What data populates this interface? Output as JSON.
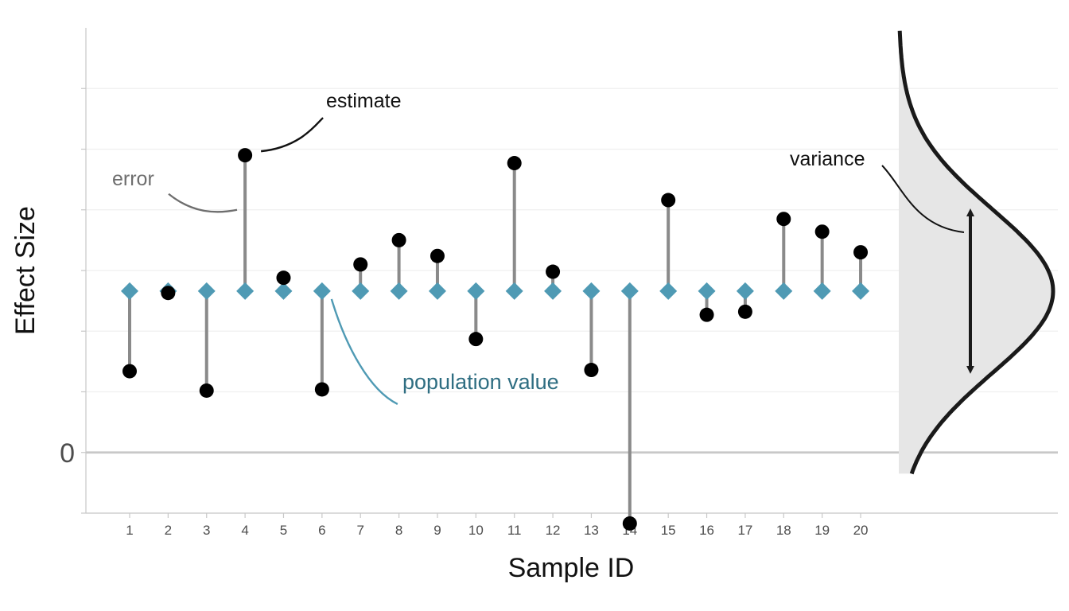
{
  "chart_data": {
    "type": "lollipop",
    "xlabel": "Sample ID",
    "ylabel": "Effect Size",
    "y_tick_labels": [
      {
        "value": 0,
        "label": "0"
      }
    ],
    "ylim": [
      -1.0,
      7.0
    ],
    "population_value": 2.66,
    "samples": [
      {
        "id": "1",
        "estimate": 1.34
      },
      {
        "id": "2",
        "estimate": 2.63
      },
      {
        "id": "3",
        "estimate": 1.02
      },
      {
        "id": "4",
        "estimate": 4.9
      },
      {
        "id": "5",
        "estimate": 2.88
      },
      {
        "id": "6",
        "estimate": 1.04
      },
      {
        "id": "7",
        "estimate": 3.1
      },
      {
        "id": "8",
        "estimate": 3.5
      },
      {
        "id": "9",
        "estimate": 3.24
      },
      {
        "id": "10",
        "estimate": 1.87
      },
      {
        "id": "11",
        "estimate": 4.77
      },
      {
        "id": "12",
        "estimate": 2.98
      },
      {
        "id": "13",
        "estimate": 1.36
      },
      {
        "id": "14",
        "estimate": -1.17
      },
      {
        "id": "15",
        "estimate": 4.16
      },
      {
        "id": "16",
        "estimate": 2.27
      },
      {
        "id": "17",
        "estimate": 2.32
      },
      {
        "id": "18",
        "estimate": 3.85
      },
      {
        "id": "19",
        "estimate": 3.64
      },
      {
        "id": "20",
        "estimate": 3.3
      }
    ],
    "distribution": {
      "mean": 2.66,
      "sd": 1.35
    },
    "annotations": {
      "estimate": "estimate",
      "error": "error",
      "population_value": "population value",
      "variance": "variance"
    },
    "colors": {
      "estimate_point": "#000000",
      "population_marker": "#4f9ab4",
      "error_segment": "#8a8a8a",
      "density_fill": "#e6e6e6",
      "density_line": "#1a1a1a",
      "zero_line": "#c8c8c8",
      "gridline": "#efefef"
    }
  }
}
